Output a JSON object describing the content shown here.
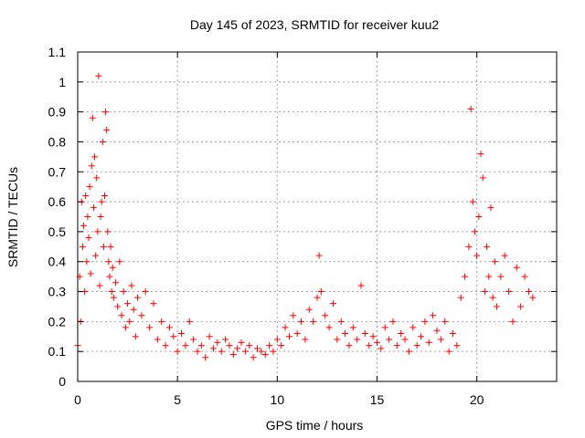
{
  "chart_data": {
    "type": "scatter",
    "title": "Day 145 of 2023, SRMTID for receiver kuu2",
    "xlabel": "GPS time / hours",
    "ylabel": "SRMTID / TECUs",
    "xlim": [
      0,
      24
    ],
    "ylim": [
      0,
      1.1
    ],
    "xticks": [
      0,
      5,
      10,
      15,
      20
    ],
    "xtick_labels": [
      "0",
      "5",
      "10",
      "15",
      "20"
    ],
    "yticks": [
      0,
      0.1,
      0.2,
      0.3,
      0.4,
      0.5,
      0.6,
      0.7,
      0.8,
      0.9,
      1,
      1.1
    ],
    "ytick_labels": [
      "0",
      "0.1",
      "0.2",
      "0.3",
      "0.4",
      "0.5",
      "0.6",
      "0.7",
      "0.8",
      "0.9",
      "1",
      "1.1"
    ],
    "grid": true,
    "marker": "plus",
    "color": "#ff0000",
    "series": [
      {
        "name": "SRMTID",
        "x": [
          0.0,
          0.1,
          0.15,
          0.2,
          0.25,
          0.3,
          0.35,
          0.4,
          0.45,
          0.5,
          0.55,
          0.6,
          0.65,
          0.7,
          0.75,
          0.8,
          0.85,
          0.9,
          0.95,
          1.0,
          1.05,
          1.1,
          1.15,
          1.2,
          1.25,
          1.3,
          1.35,
          1.4,
          1.45,
          1.5,
          1.55,
          1.6,
          1.65,
          1.7,
          1.75,
          1.8,
          1.9,
          2.0,
          2.1,
          2.2,
          2.3,
          2.4,
          2.5,
          2.6,
          2.7,
          2.8,
          2.9,
          3.0,
          3.2,
          3.4,
          3.6,
          3.8,
          4.0,
          4.2,
          4.4,
          4.6,
          4.8,
          5.0,
          5.2,
          5.4,
          5.6,
          5.8,
          6.0,
          6.2,
          6.4,
          6.6,
          6.8,
          7.0,
          7.2,
          7.4,
          7.6,
          7.8,
          8.0,
          8.2,
          8.4,
          8.6,
          8.8,
          9.0,
          9.2,
          9.4,
          9.6,
          9.8,
          10.0,
          10.2,
          10.4,
          10.6,
          10.8,
          11.0,
          11.2,
          11.4,
          11.6,
          11.8,
          12.0,
          12.1,
          12.2,
          12.4,
          12.6,
          12.8,
          13.0,
          13.2,
          13.4,
          13.6,
          13.8,
          14.0,
          14.2,
          14.4,
          14.6,
          14.8,
          15.0,
          15.2,
          15.4,
          15.6,
          15.8,
          16.0,
          16.2,
          16.4,
          16.6,
          16.8,
          17.0,
          17.2,
          17.4,
          17.6,
          17.8,
          18.0,
          18.2,
          18.4,
          18.6,
          18.8,
          19.0,
          19.2,
          19.4,
          19.6,
          19.7,
          19.8,
          19.9,
          20.0,
          20.1,
          20.2,
          20.3,
          20.4,
          20.5,
          20.6,
          20.7,
          20.8,
          20.9,
          21.0,
          21.2,
          21.4,
          21.6,
          21.8,
          22.0,
          22.2,
          22.4,
          22.6,
          22.8
        ],
        "y": [
          0.12,
          0.35,
          0.2,
          0.6,
          0.45,
          0.52,
          0.3,
          0.62,
          0.4,
          0.55,
          0.48,
          0.65,
          0.36,
          0.72,
          0.88,
          0.58,
          0.75,
          0.42,
          0.68,
          0.5,
          1.02,
          0.32,
          0.55,
          0.6,
          0.8,
          0.45,
          0.62,
          0.9,
          0.84,
          0.5,
          0.4,
          0.35,
          0.45,
          0.3,
          0.38,
          0.28,
          0.33,
          0.25,
          0.4,
          0.22,
          0.3,
          0.18,
          0.26,
          0.2,
          0.32,
          0.24,
          0.15,
          0.28,
          0.22,
          0.3,
          0.18,
          0.26,
          0.14,
          0.2,
          0.12,
          0.18,
          0.15,
          0.1,
          0.16,
          0.12,
          0.2,
          0.14,
          0.1,
          0.12,
          0.08,
          0.15,
          0.11,
          0.13,
          0.1,
          0.14,
          0.12,
          0.09,
          0.11,
          0.13,
          0.1,
          0.12,
          0.08,
          0.11,
          0.1,
          0.09,
          0.12,
          0.1,
          0.14,
          0.12,
          0.18,
          0.15,
          0.22,
          0.16,
          0.2,
          0.14,
          0.24,
          0.2,
          0.28,
          0.42,
          0.3,
          0.22,
          0.18,
          0.26,
          0.14,
          0.2,
          0.16,
          0.12,
          0.18,
          0.14,
          0.32,
          0.16,
          0.12,
          0.15,
          0.13,
          0.11,
          0.18,
          0.14,
          0.2,
          0.12,
          0.16,
          0.14,
          0.1,
          0.18,
          0.12,
          0.15,
          0.2,
          0.13,
          0.22,
          0.17,
          0.14,
          0.2,
          0.1,
          0.16,
          0.12,
          0.28,
          0.35,
          0.45,
          0.91,
          0.6,
          0.5,
          0.42,
          0.55,
          0.76,
          0.68,
          0.3,
          0.45,
          0.35,
          0.58,
          0.28,
          0.4,
          0.25,
          0.35,
          0.42,
          0.3,
          0.2,
          0.38,
          0.25,
          0.35,
          0.3,
          0.28
        ]
      }
    ]
  }
}
